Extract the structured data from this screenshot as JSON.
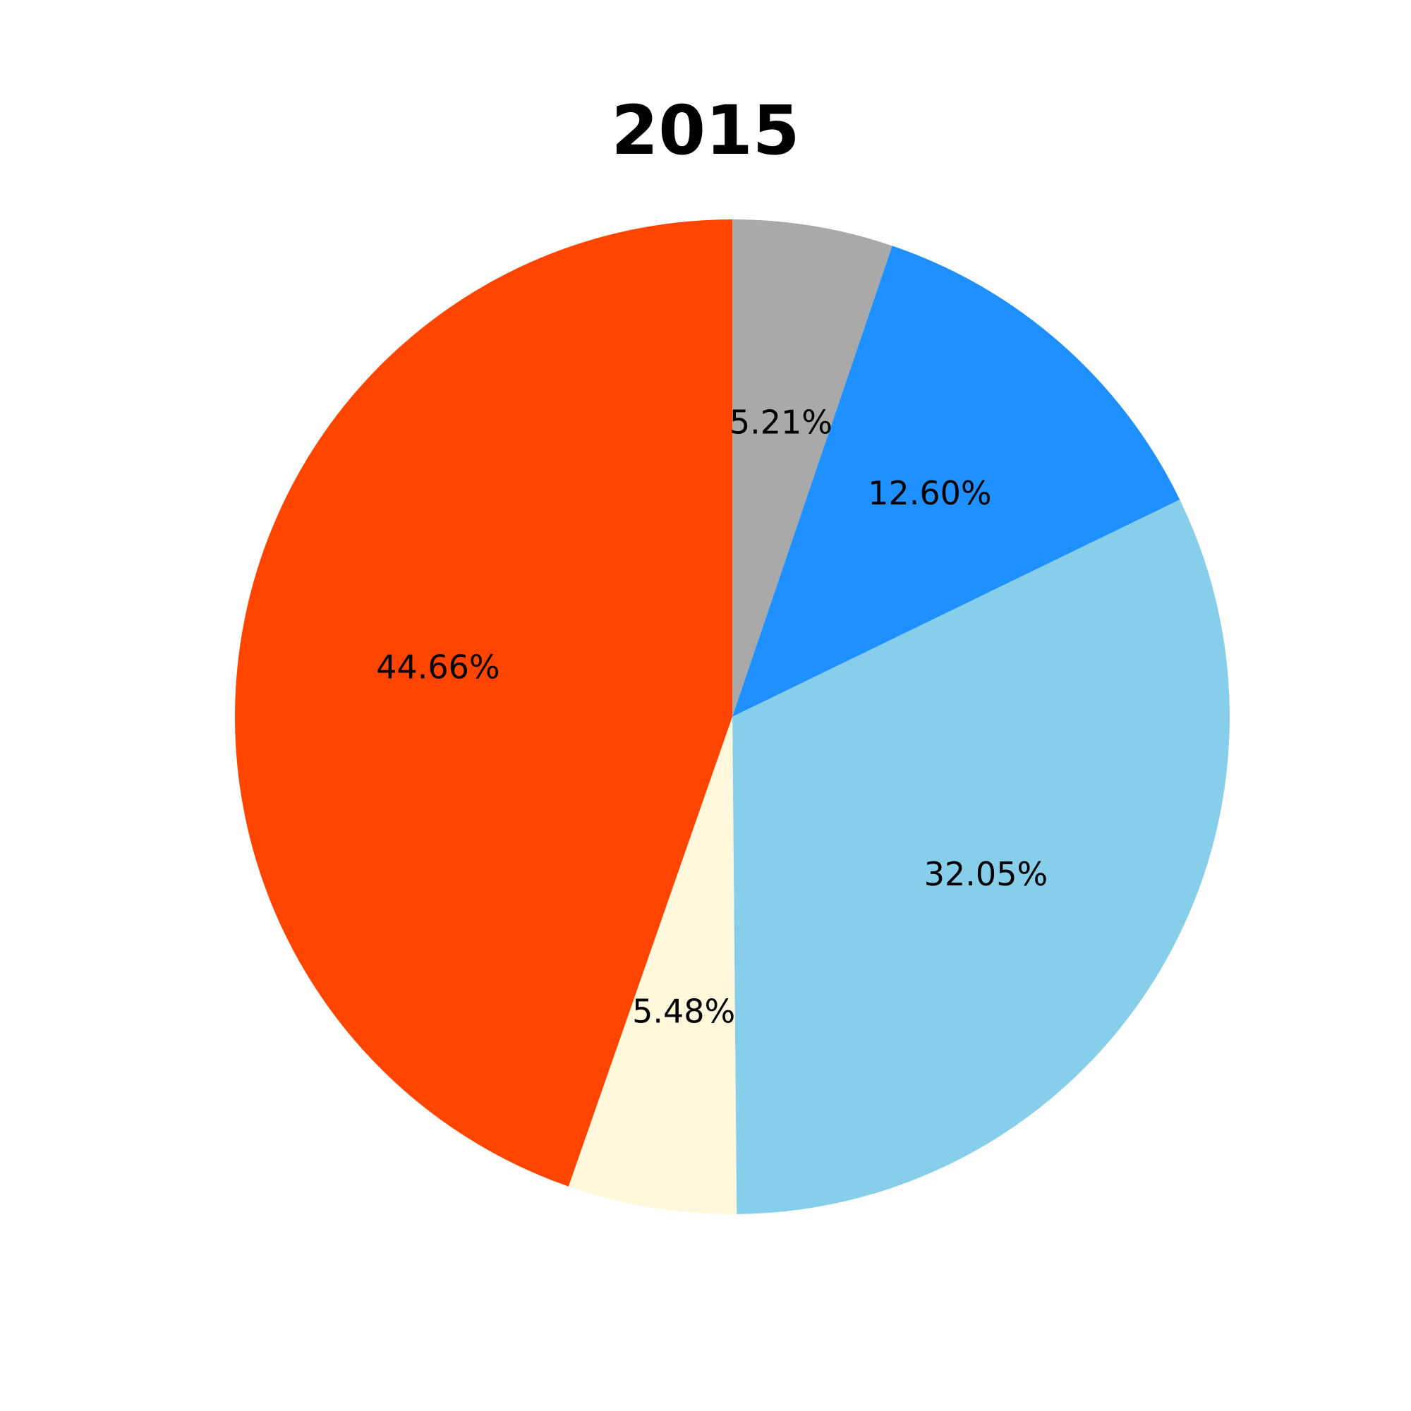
{
  "chart_data": {
    "type": "pie",
    "title": "2015",
    "start_angle_deg": 90,
    "direction": "clockwise",
    "slices": [
      {
        "value": 5.21,
        "label": "5.21%",
        "color": "#A9A9A9"
      },
      {
        "value": 12.6,
        "label": "12.60%",
        "color": "#1E90FF"
      },
      {
        "value": 32.05,
        "label": "32.05%",
        "color": "#87CEEB"
      },
      {
        "value": 5.48,
        "label": "5.48%",
        "color": "#FFF8DC"
      },
      {
        "value": 44.66,
        "label": "44.66%",
        "color": "#FF4500"
      }
    ]
  }
}
